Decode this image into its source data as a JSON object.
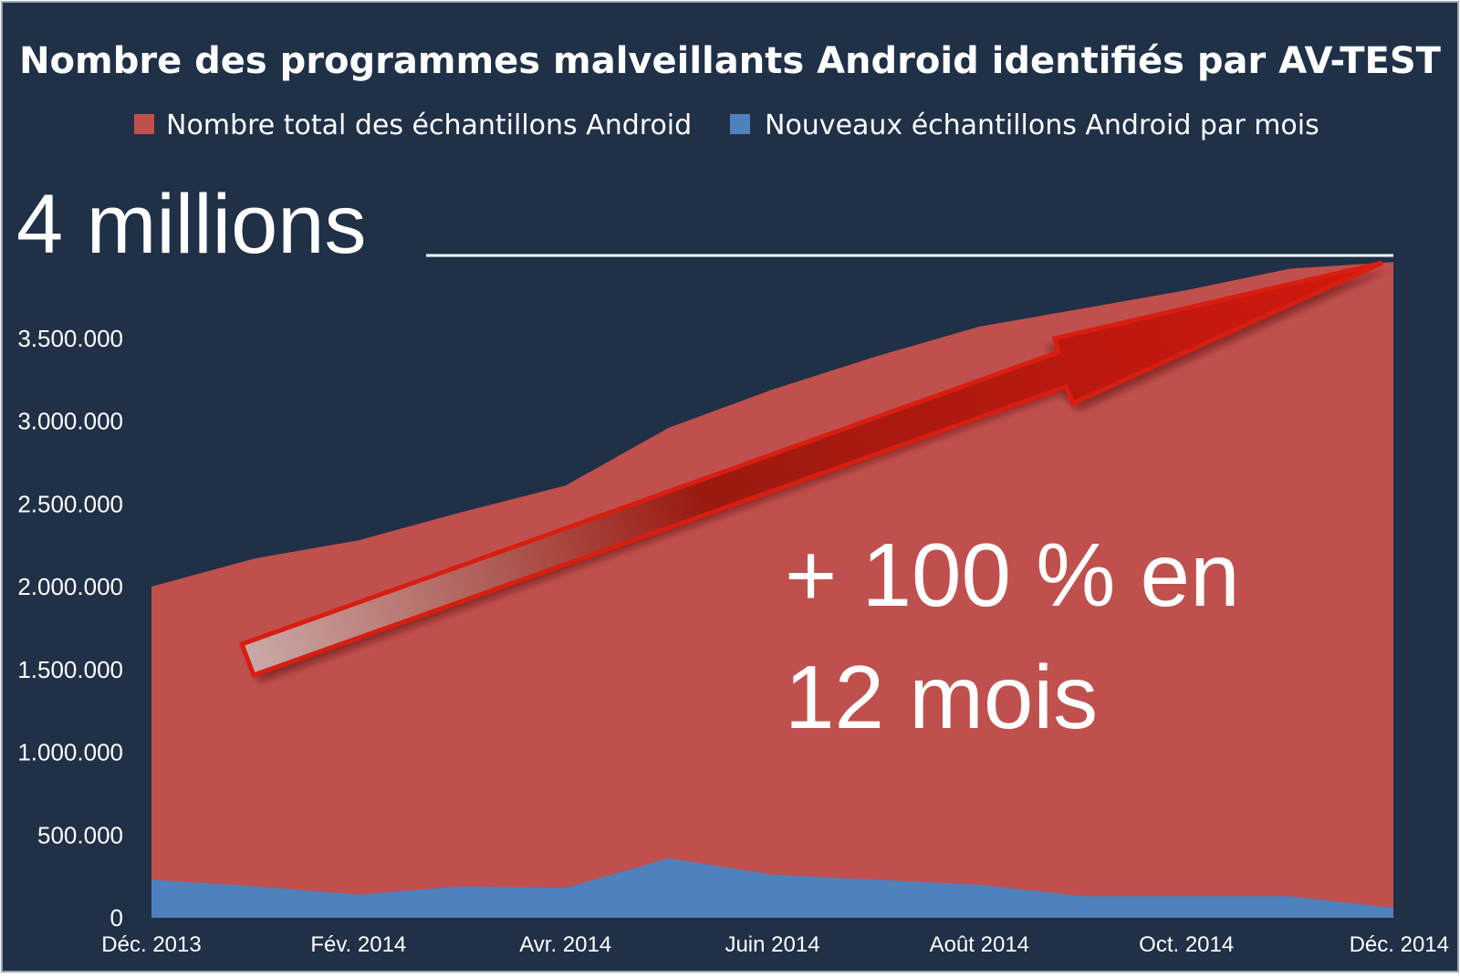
{
  "chart_data": {
    "type": "area",
    "title": "Nombre des programmes malveillants Android identifiés par AV-TEST",
    "legend": {
      "placement": "top",
      "items": [
        {
          "name": "Nombre total des échantillons Android",
          "color": "#c0504d"
        },
        {
          "name": "Nouveaux échantillons Android par mois",
          "color": "#4f81bd"
        }
      ]
    },
    "x_tick_labels": [
      "Déc. 2013",
      "Fév. 2014",
      "Avr. 2014",
      "Juin 2014",
      "Août 2014",
      "Oct. 2014",
      "Déc. 2014"
    ],
    "y_tick_labels": [
      "0",
      "500.000",
      "1.000.000",
      "1.500.000",
      "2.000.000",
      "2.500.000",
      "3.000.000",
      "3.500.000"
    ],
    "y_ticks": [
      0,
      500000,
      1000000,
      1500000,
      2000000,
      2500000,
      3000000,
      3500000
    ],
    "ylim": [
      0,
      4000000
    ],
    "grid": false,
    "x_count": 13,
    "series": [
      {
        "name": "Nombre total des échantillons Android",
        "color": "#c0504d",
        "values": [
          2000000,
          2170000,
          2280000,
          2450000,
          2610000,
          2960000,
          3190000,
          3390000,
          3570000,
          3680000,
          3790000,
          3920000,
          3960000
        ]
      },
      {
        "name": "Nouveaux échantillons Android par mois",
        "color": "#4f81bd",
        "values": [
          230000,
          190000,
          140000,
          190000,
          180000,
          360000,
          260000,
          230000,
          200000,
          130000,
          130000,
          130000,
          60000
        ]
      }
    ],
    "annotations": {
      "max_label": "4 millions",
      "growth_label_line1": "+ 100 % en",
      "growth_label_line2": "12 mois"
    }
  },
  "colors": {
    "background": "#1f3047",
    "text": "#ffffff",
    "total": "#c0504d",
    "monthly": "#4f81bd",
    "arrow": "#c3191b"
  }
}
